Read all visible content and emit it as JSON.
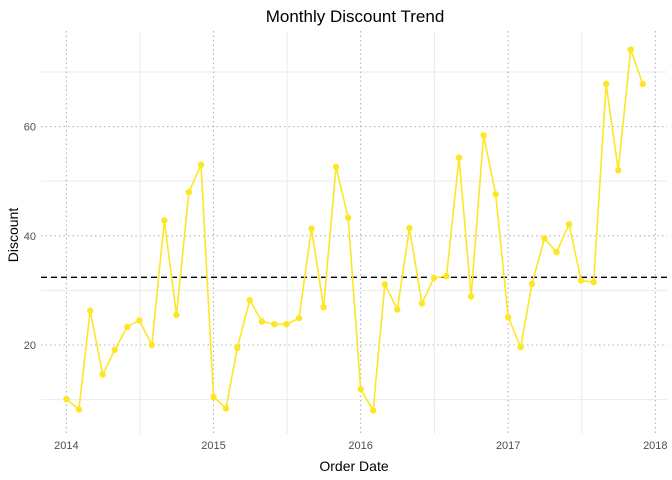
{
  "chart_data": {
    "type": "line",
    "title": "Monthly Discount Trend",
    "xlabel": "Order Date",
    "ylabel": "Discount",
    "x_ticks": [
      "2014",
      "2015",
      "2016",
      "2017",
      "2018"
    ],
    "y_ticks": [
      "20",
      "40",
      "60"
    ],
    "xlim": [
      "2013-10-30",
      "2018-01-30"
    ],
    "ylim": [
      3.7,
      77.5
    ],
    "grid": true,
    "legend": "none",
    "reference_line": {
      "value": 32.4,
      "style": "dashed",
      "color": "#000000"
    },
    "series": [
      {
        "color": "#FDE725",
        "x": [
          "2014-01",
          "2014-02",
          "2014-03",
          "2014-04",
          "2014-05",
          "2014-06",
          "2014-07",
          "2014-08",
          "2014-09",
          "2014-10",
          "2014-11",
          "2014-12",
          "2015-01",
          "2015-02",
          "2015-03",
          "2015-04",
          "2015-05",
          "2015-06",
          "2015-07",
          "2015-08",
          "2015-09",
          "2015-10",
          "2015-11",
          "2015-12",
          "2016-01",
          "2016-02",
          "2016-03",
          "2016-04",
          "2016-05",
          "2016-06",
          "2016-07",
          "2016-08",
          "2016-09",
          "2016-10",
          "2016-11",
          "2016-12",
          "2017-01",
          "2017-02",
          "2017-03",
          "2017-04",
          "2017-05",
          "2017-06",
          "2017-07",
          "2017-08",
          "2017-09",
          "2017-10",
          "2017-11",
          "2017-12"
        ],
        "values": [
          10.1,
          8.2,
          26.3,
          14.6,
          19.1,
          23.3,
          24.5,
          20.0,
          42.8,
          25.5,
          48.0,
          53.0,
          10.5,
          8.4,
          19.5,
          28.2,
          24.3,
          23.8,
          23.8,
          24.9,
          41.3,
          26.9,
          52.6,
          43.3,
          11.9,
          8.0,
          31.1,
          26.5,
          41.4,
          27.6,
          32.3,
          32.6,
          54.3,
          28.9,
          58.4,
          47.6,
          25.1,
          19.6,
          31.2,
          39.5,
          37.0,
          42.1,
          31.8,
          31.5,
          67.8,
          52.0,
          74.1,
          67.8
        ]
      }
    ]
  }
}
